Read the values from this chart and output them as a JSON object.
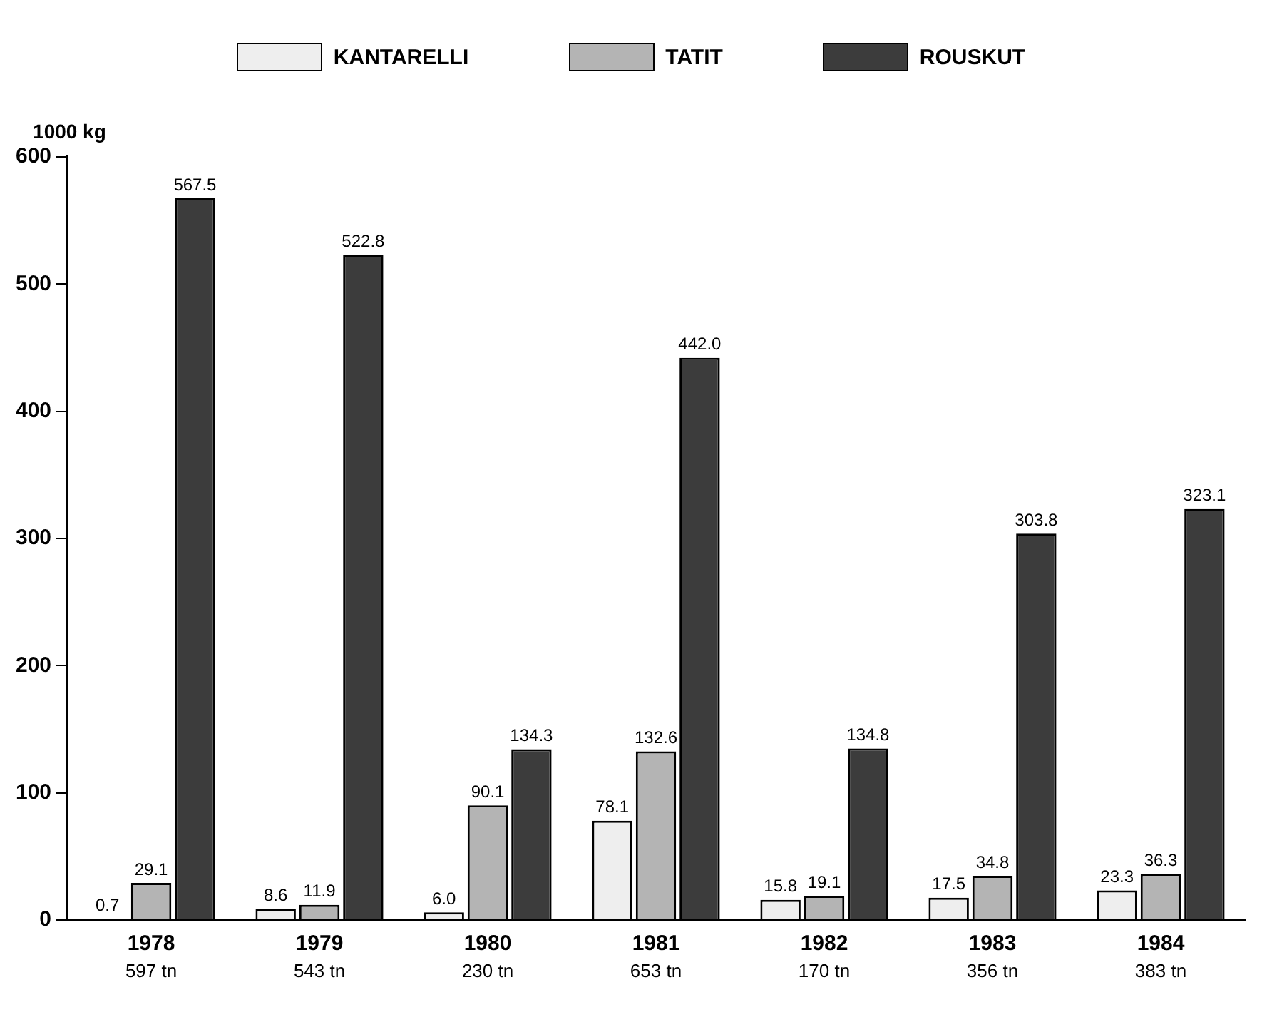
{
  "chart_data": {
    "type": "bar",
    "ylabel": "1000 kg",
    "categories": [
      "1978",
      "1979",
      "1980",
      "1981",
      "1982",
      "1983",
      "1984"
    ],
    "series": [
      {
        "name": "KANTARELLI",
        "color": "#eeeeee",
        "values": [
          0.7,
          8.6,
          6.0,
          78.1,
          15.8,
          17.5,
          23.3
        ],
        "value_labels": [
          "0.7",
          "8.6",
          "6.0",
          "78.1",
          "15.8",
          "17.5",
          "23.3"
        ]
      },
      {
        "name": "TATIT",
        "color": "#b4b4b4",
        "values": [
          29.1,
          11.9,
          90.1,
          132.6,
          19.1,
          34.8,
          36.3
        ],
        "value_labels": [
          "29.1",
          "11.9",
          "90.1",
          "132.6",
          "19.1",
          "34.8",
          "36.3"
        ]
      },
      {
        "name": "ROUSKUT",
        "color": "#3c3c3c",
        "values": [
          567.5,
          522.8,
          134.3,
          442.0,
          134.8,
          303.8,
          323.1
        ],
        "value_labels": [
          "567.5",
          "522.8",
          "134.3",
          "442.0",
          "134.8",
          "303.8",
          "323.1"
        ]
      }
    ],
    "totals": [
      "597 tn",
      "543 tn",
      "230 tn",
      "653 tn",
      "170 tn",
      "356 tn",
      "383 tn"
    ],
    "ylim": [
      0,
      600
    ],
    "yticks": [
      0,
      100,
      200,
      300,
      400,
      500,
      600
    ],
    "grid": false,
    "legend": "top"
  }
}
